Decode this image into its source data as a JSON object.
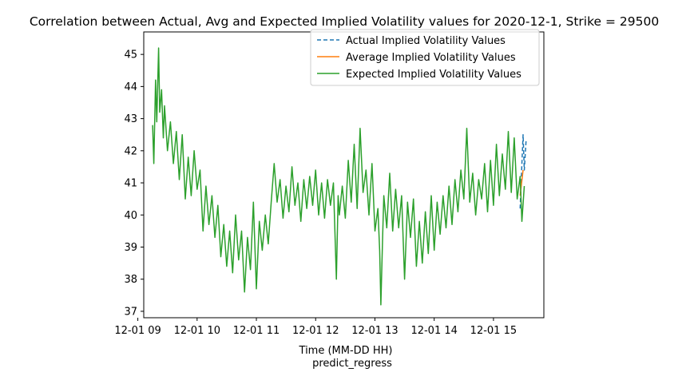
{
  "chart_data": {
    "type": "line",
    "title": "Correlation between Actual, Avg and Expected Implied Volatility values for 2020-12-1, Strike = 29500",
    "xlabel": "Time (MM-DD HH)",
    "caption": "predict_regress",
    "ylabel": "",
    "xlim": [
      9.1,
      15.85
    ],
    "ylim": [
      36.8,
      45.7
    ],
    "x_ticks": [
      {
        "value": 9,
        "label": "12-01 09"
      },
      {
        "value": 10,
        "label": "12-01 10"
      },
      {
        "value": 11,
        "label": "12-01 11"
      },
      {
        "value": 12,
        "label": "12-01 12"
      },
      {
        "value": 13,
        "label": "12-01 13"
      },
      {
        "value": 14,
        "label": "12-01 14"
      },
      {
        "value": 15,
        "label": "12-01 15"
      }
    ],
    "y_ticks": [
      {
        "value": 37,
        "label": "37"
      },
      {
        "value": 38,
        "label": "38"
      },
      {
        "value": 39,
        "label": "39"
      },
      {
        "value": 40,
        "label": "40"
      },
      {
        "value": 41,
        "label": "41"
      },
      {
        "value": 42,
        "label": "42"
      },
      {
        "value": 43,
        "label": "43"
      },
      {
        "value": 44,
        "label": "44"
      },
      {
        "value": 45,
        "label": "45"
      }
    ],
    "grid": false,
    "legend_position": "top-right",
    "series": [
      {
        "name": "Actual Implied Volatility Values",
        "color": "#1f77b4",
        "style": "dashed",
        "values": [
          [
            15.45,
            40.2
          ],
          [
            15.48,
            41.6
          ],
          [
            15.5,
            42.5
          ],
          [
            15.52,
            41.4
          ],
          [
            15.55,
            42.3
          ]
        ]
      },
      {
        "name": "Average Implied Volatility Values",
        "color": "#ff7f0e",
        "style": "solid",
        "values": [
          [
            15.45,
            40.6
          ],
          [
            15.5,
            41.4
          ]
        ]
      },
      {
        "name": "Expected Implied Volatility Values",
        "color": "#2ca02c",
        "style": "solid",
        "values": [
          [
            9.25,
            42.8
          ],
          [
            9.27,
            41.6
          ],
          [
            9.3,
            44.2
          ],
          [
            9.32,
            42.9
          ],
          [
            9.35,
            45.2
          ],
          [
            9.37,
            43.2
          ],
          [
            9.4,
            43.9
          ],
          [
            9.43,
            42.4
          ],
          [
            9.45,
            43.4
          ],
          [
            9.5,
            42.0
          ],
          [
            9.55,
            42.9
          ],
          [
            9.6,
            41.6
          ],
          [
            9.65,
            42.6
          ],
          [
            9.7,
            41.1
          ],
          [
            9.75,
            42.5
          ],
          [
            9.8,
            40.5
          ],
          [
            9.85,
            41.8
          ],
          [
            9.9,
            40.6
          ],
          [
            9.95,
            42.0
          ],
          [
            10.0,
            40.8
          ],
          [
            10.05,
            41.4
          ],
          [
            10.1,
            39.5
          ],
          [
            10.15,
            40.9
          ],
          [
            10.2,
            39.7
          ],
          [
            10.25,
            40.6
          ],
          [
            10.3,
            39.3
          ],
          [
            10.35,
            40.3
          ],
          [
            10.4,
            38.7
          ],
          [
            10.45,
            39.7
          ],
          [
            10.5,
            38.4
          ],
          [
            10.55,
            39.5
          ],
          [
            10.6,
            38.2
          ],
          [
            10.65,
            40.0
          ],
          [
            10.7,
            38.6
          ],
          [
            10.75,
            39.5
          ],
          [
            10.8,
            37.6
          ],
          [
            10.85,
            39.3
          ],
          [
            10.9,
            38.3
          ],
          [
            10.95,
            40.4
          ],
          [
            11.0,
            37.7
          ],
          [
            11.05,
            39.8
          ],
          [
            11.1,
            38.9
          ],
          [
            11.15,
            40.0
          ],
          [
            11.2,
            39.1
          ],
          [
            11.25,
            40.4
          ],
          [
            11.3,
            41.6
          ],
          [
            11.35,
            40.4
          ],
          [
            11.4,
            41.1
          ],
          [
            11.45,
            39.9
          ],
          [
            11.5,
            40.9
          ],
          [
            11.55,
            40.1
          ],
          [
            11.6,
            41.5
          ],
          [
            11.65,
            40.3
          ],
          [
            11.7,
            41.0
          ],
          [
            11.75,
            39.8
          ],
          [
            11.8,
            41.1
          ],
          [
            11.85,
            40.2
          ],
          [
            11.9,
            41.2
          ],
          [
            11.95,
            40.3
          ],
          [
            12.0,
            41.4
          ],
          [
            12.05,
            40.0
          ],
          [
            12.1,
            41.0
          ],
          [
            12.15,
            39.9
          ],
          [
            12.2,
            41.1
          ],
          [
            12.25,
            40.3
          ],
          [
            12.3,
            41.0
          ],
          [
            12.35,
            38.0
          ],
          [
            12.38,
            40.6
          ],
          [
            12.4,
            40.0
          ],
          [
            12.45,
            40.9
          ],
          [
            12.5,
            39.9
          ],
          [
            12.55,
            41.7
          ],
          [
            12.6,
            40.4
          ],
          [
            12.65,
            42.2
          ],
          [
            12.7,
            40.2
          ],
          [
            12.75,
            42.7
          ],
          [
            12.8,
            40.7
          ],
          [
            12.85,
            41.4
          ],
          [
            12.9,
            40.0
          ],
          [
            12.95,
            41.6
          ],
          [
            13.0,
            39.5
          ],
          [
            13.05,
            40.2
          ],
          [
            13.08,
            38.9
          ],
          [
            13.1,
            37.2
          ],
          [
            13.13,
            39.3
          ],
          [
            13.15,
            40.6
          ],
          [
            13.2,
            39.6
          ],
          [
            13.25,
            41.3
          ],
          [
            13.3,
            39.5
          ],
          [
            13.35,
            40.8
          ],
          [
            13.4,
            39.6
          ],
          [
            13.45,
            40.6
          ],
          [
            13.5,
            38.0
          ],
          [
            13.55,
            40.4
          ],
          [
            13.6,
            39.3
          ],
          [
            13.65,
            40.5
          ],
          [
            13.7,
            38.4
          ],
          [
            13.75,
            39.8
          ],
          [
            13.8,
            38.5
          ],
          [
            13.85,
            40.1
          ],
          [
            13.9,
            38.8
          ],
          [
            13.95,
            40.6
          ],
          [
            14.0,
            38.9
          ],
          [
            14.05,
            40.4
          ],
          [
            14.1,
            39.4
          ],
          [
            14.15,
            40.6
          ],
          [
            14.2,
            39.6
          ],
          [
            14.25,
            40.9
          ],
          [
            14.3,
            39.7
          ],
          [
            14.35,
            41.1
          ],
          [
            14.4,
            40.1
          ],
          [
            14.45,
            41.4
          ],
          [
            14.5,
            40.5
          ],
          [
            14.55,
            42.7
          ],
          [
            14.6,
            40.4
          ],
          [
            14.65,
            41.3
          ],
          [
            14.7,
            40.0
          ],
          [
            14.75,
            41.1
          ],
          [
            14.8,
            40.5
          ],
          [
            14.85,
            41.6
          ],
          [
            14.9,
            40.1
          ],
          [
            14.95,
            41.7
          ],
          [
            15.0,
            40.3
          ],
          [
            15.05,
            42.2
          ],
          [
            15.1,
            40.6
          ],
          [
            15.15,
            41.9
          ],
          [
            15.2,
            40.8
          ],
          [
            15.25,
            42.6
          ],
          [
            15.3,
            40.7
          ],
          [
            15.35,
            42.4
          ],
          [
            15.4,
            40.5
          ],
          [
            15.45,
            41.2
          ],
          [
            15.48,
            39.8
          ],
          [
            15.52,
            40.9
          ]
        ]
      }
    ]
  }
}
